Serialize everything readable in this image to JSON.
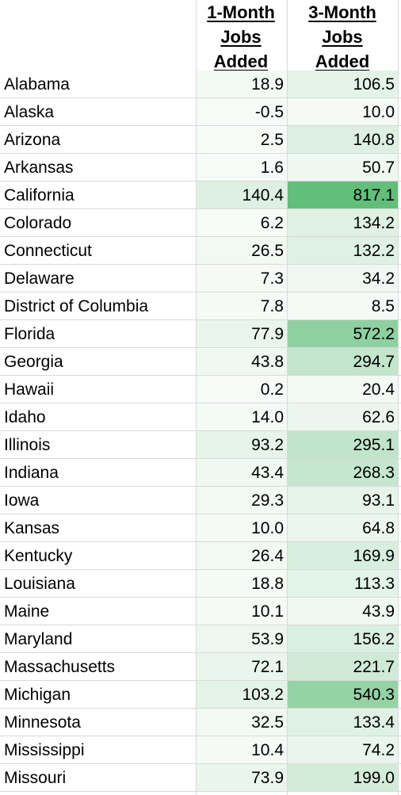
{
  "header": {
    "col1_lines": [
      "1-Month",
      "Jobs",
      "Added"
    ],
    "col2_lines": [
      "3-Month",
      "Jobs",
      "Added"
    ]
  },
  "colors": {
    "heat_low": "#f7fbf8",
    "heat_high": "#63be7b",
    "grid": "#d9d9d9"
  },
  "rows": [
    {
      "state": "Alabama",
      "one_month": "18.9",
      "three_month": "106.5"
    },
    {
      "state": "Alaska",
      "one_month": "-0.5",
      "three_month": "10.0"
    },
    {
      "state": "Arizona",
      "one_month": "2.5",
      "three_month": "140.8"
    },
    {
      "state": "Arkansas",
      "one_month": "1.6",
      "three_month": "50.7"
    },
    {
      "state": "California",
      "one_month": "140.4",
      "three_month": "817.1"
    },
    {
      "state": "Colorado",
      "one_month": "6.2",
      "three_month": "134.2"
    },
    {
      "state": "Connecticut",
      "one_month": "26.5",
      "three_month": "132.2"
    },
    {
      "state": "Delaware",
      "one_month": "7.3",
      "three_month": "34.2"
    },
    {
      "state": "District of Columbia",
      "one_month": "7.8",
      "three_month": "8.5"
    },
    {
      "state": "Florida",
      "one_month": "77.9",
      "three_month": "572.2"
    },
    {
      "state": "Georgia",
      "one_month": "43.8",
      "three_month": "294.7"
    },
    {
      "state": "Hawaii",
      "one_month": "0.2",
      "three_month": "20.4"
    },
    {
      "state": "Idaho",
      "one_month": "14.0",
      "three_month": "62.6"
    },
    {
      "state": "Illinois",
      "one_month": "93.2",
      "three_month": "295.1"
    },
    {
      "state": "Indiana",
      "one_month": "43.4",
      "three_month": "268.3"
    },
    {
      "state": "Iowa",
      "one_month": "29.3",
      "three_month": "93.1"
    },
    {
      "state": "Kansas",
      "one_month": "10.0",
      "three_month": "64.8"
    },
    {
      "state": "Kentucky",
      "one_month": "26.4",
      "three_month": "169.9"
    },
    {
      "state": "Louisiana",
      "one_month": "18.8",
      "three_month": "113.3"
    },
    {
      "state": "Maine",
      "one_month": "10.1",
      "three_month": "43.9"
    },
    {
      "state": "Maryland",
      "one_month": "53.9",
      "three_month": "156.2"
    },
    {
      "state": "Massachusetts",
      "one_month": "72.1",
      "three_month": "221.7"
    },
    {
      "state": "Michigan",
      "one_month": "103.2",
      "three_month": "540.3"
    },
    {
      "state": "Minnesota",
      "one_month": "32.5",
      "three_month": "133.4"
    },
    {
      "state": "Mississippi",
      "one_month": "10.4",
      "three_month": "74.2"
    },
    {
      "state": "Missouri",
      "one_month": "73.9",
      "three_month": "199.0"
    }
  ]
}
